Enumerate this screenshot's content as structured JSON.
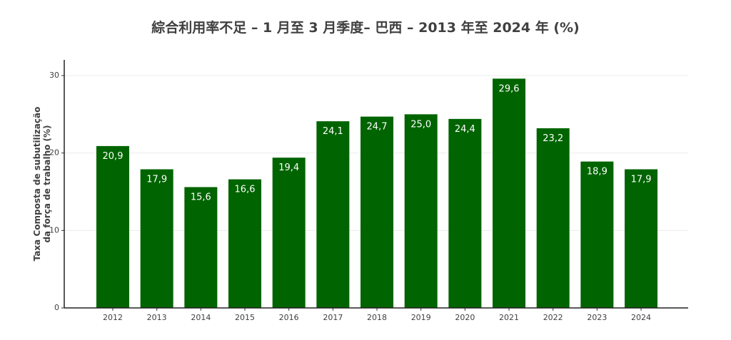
{
  "page_title": "綜合利用率不足 – 1 月至 3 月季度– 巴西 – 2013 年至 2024 年 (%)",
  "chart_data": {
    "type": "bar",
    "title": "綜合利用率不足 – 1 月至 3 月季度– 巴西 – 2013 年至 2024 年 (%)",
    "xlabel": "",
    "ylabel_line1": "Taxa Composta de subutilização",
    "ylabel_line2": "da força de trabalho (%)",
    "categories": [
      "2012",
      "2013",
      "2014",
      "2015",
      "2016",
      "2017",
      "2018",
      "2019",
      "2020",
      "2021",
      "2022",
      "2023",
      "2024"
    ],
    "values": [
      20.9,
      17.9,
      15.6,
      16.6,
      19.4,
      24.1,
      24.7,
      25.0,
      24.4,
      29.6,
      23.2,
      18.9,
      17.9
    ],
    "value_labels": [
      "20,9",
      "17,9",
      "15,6",
      "16,6",
      "19,4",
      "24,1",
      "24,7",
      "25,0",
      "24,4",
      "29,6",
      "23,2",
      "18,9",
      "17,9"
    ],
    "ylim": [
      0,
      30
    ],
    "yticks": [
      "0",
      "10",
      "20",
      "30"
    ],
    "grid": true,
    "bar_color": "#006400",
    "gridline_color": "#ececec"
  }
}
